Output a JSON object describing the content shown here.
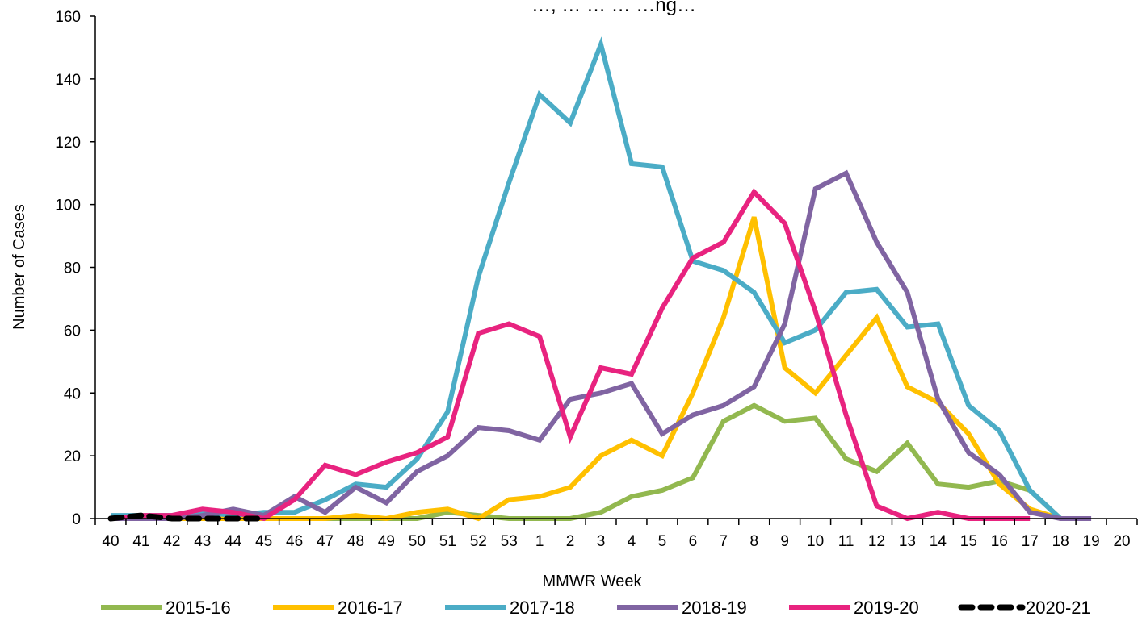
{
  "chart_data": {
    "type": "line",
    "title": "…, … … … …ng…",
    "xlabel": "MMWR Week",
    "ylabel": "Number of Cases",
    "ylim": [
      0,
      160
    ],
    "yticks": [
      0,
      20,
      40,
      60,
      80,
      100,
      120,
      140,
      160
    ],
    "grid": false,
    "legend_position": "bottom",
    "x": [
      "40",
      "41",
      "42",
      "43",
      "44",
      "45",
      "46",
      "47",
      "48",
      "49",
      "50",
      "51",
      "52",
      "53",
      "1",
      "2",
      "3",
      "4",
      "5",
      "6",
      "7",
      "8",
      "9",
      "10",
      "11",
      "12",
      "13",
      "14",
      "15",
      "16",
      "17",
      "18",
      "19",
      "20"
    ],
    "series": [
      {
        "name": "2015-16",
        "color": "#92B84F",
        "dashed": false,
        "values": [
          0,
          0,
          0,
          0,
          0,
          0,
          0,
          0,
          0,
          0,
          0,
          2,
          1,
          0,
          0,
          0,
          2,
          7,
          9,
          13,
          31,
          36,
          31,
          32,
          19,
          15,
          24,
          11,
          10,
          12,
          9,
          0,
          null,
          null
        ]
      },
      {
        "name": "2016-17",
        "color": "#FFC000",
        "dashed": false,
        "values": [
          0,
          0,
          0,
          0,
          0,
          0,
          0,
          0,
          1,
          0,
          2,
          3,
          0,
          6,
          7,
          10,
          20,
          25,
          20,
          40,
          64,
          96,
          48,
          40,
          52,
          64,
          42,
          37,
          27,
          11,
          3,
          0,
          null,
          null
        ]
      },
      {
        "name": "2017-18",
        "color": "#4BACC6",
        "dashed": false,
        "values": [
          1,
          1,
          1,
          2,
          1,
          2,
          2,
          6,
          11,
          10,
          19,
          34,
          77,
          107,
          135,
          126,
          151,
          113,
          112,
          82,
          79,
          72,
          56,
          60,
          72,
          73,
          61,
          62,
          36,
          28,
          9,
          0,
          null,
          null
        ]
      },
      {
        "name": "2018-19",
        "color": "#8064A2",
        "dashed": false,
        "values": [
          0,
          0,
          0,
          1,
          3,
          1,
          7,
          2,
          10,
          5,
          15,
          20,
          29,
          28,
          25,
          38,
          40,
          43,
          27,
          33,
          36,
          42,
          62,
          105,
          110,
          88,
          72,
          38,
          21,
          14,
          2,
          0,
          0,
          null
        ]
      },
      {
        "name": "2019-20",
        "color": "#E8237F",
        "dashed": false,
        "values": [
          0,
          1,
          1,
          3,
          2,
          0,
          6,
          17,
          14,
          18,
          21,
          26,
          59,
          62,
          58,
          26,
          48,
          46,
          67,
          83,
          88,
          104,
          94,
          66,
          33,
          4,
          0,
          2,
          0,
          0,
          0,
          null,
          null,
          null
        ]
      },
      {
        "name": "2020-21",
        "color": "#000000",
        "dashed": true,
        "values": [
          0,
          1,
          0,
          0,
          0,
          0,
          null,
          null,
          null,
          null,
          null,
          null,
          null,
          null,
          null,
          null,
          null,
          null,
          null,
          null,
          null,
          null,
          null,
          null,
          null,
          null,
          null,
          null,
          null,
          null,
          null,
          null,
          null,
          null
        ]
      }
    ]
  }
}
